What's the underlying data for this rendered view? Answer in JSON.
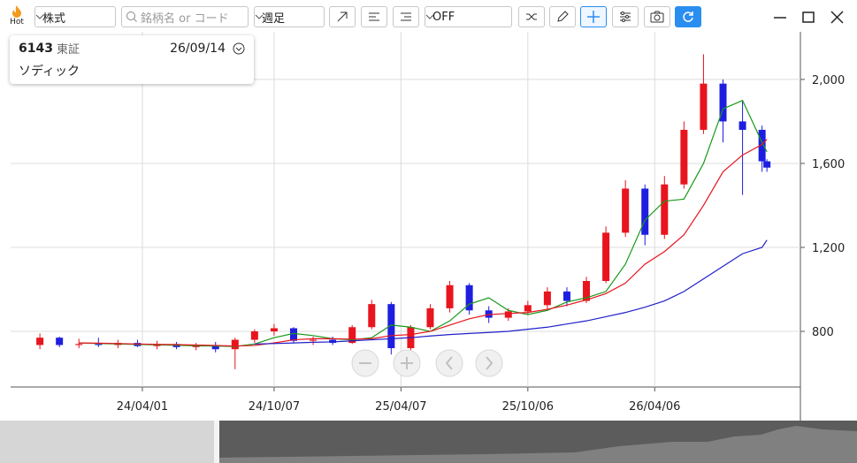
{
  "toolbar": {
    "hot": "Hot",
    "market": "株式",
    "search_placeholder": "銘柄名 or コード",
    "period": "週足",
    "mode": "OFF"
  },
  "info": {
    "code": "6143",
    "exchange": "東証",
    "date": "26/09/14",
    "name": "ソディック"
  },
  "chart_data": {
    "type": "candlestick",
    "up_color": "#e8141e",
    "down_color": "#1e1ee0",
    "grid": true,
    "x": [
      "23/11/06",
      "23/12/04",
      "24/01/01",
      "24/01/29",
      "24/02/26",
      "24/03/25",
      "24/04/22",
      "24/05/20",
      "24/06/17",
      "24/07/15",
      "24/08/12",
      "24/09/09",
      "24/10/07",
      "24/11/04",
      "24/12/02",
      "24/12/30",
      "25/01/27",
      "25/02/24",
      "25/03/24",
      "25/04/21",
      "25/05/19",
      "25/06/16",
      "25/07/14",
      "25/08/11",
      "25/09/08",
      "25/10/06",
      "25/11/03",
      "25/12/01",
      "25/12/29",
      "26/01/26",
      "26/02/23",
      "26/03/23",
      "26/04/20",
      "26/05/18",
      "26/06/15",
      "26/07/13",
      "26/08/10",
      "26/09/07",
      "26/09/14"
    ],
    "open": [
      735,
      770,
      735,
      740,
      735,
      745,
      730,
      740,
      725,
      735,
      715,
      760,
      800,
      815,
      755,
      760,
      745,
      820,
      930,
      720,
      820,
      910,
      1020,
      900,
      865,
      895,
      925,
      990,
      945,
      1040,
      1270,
      1480,
      1260,
      1500,
      1760,
      1980,
      1800,
      1760,
      1610
    ],
    "high": [
      790,
      775,
      765,
      770,
      760,
      760,
      755,
      750,
      745,
      750,
      770,
      810,
      835,
      820,
      775,
      775,
      830,
      950,
      940,
      830,
      930,
      1040,
      1030,
      920,
      910,
      945,
      1010,
      1010,
      1060,
      1300,
      1520,
      1500,
      1540,
      1800,
      2120,
      2000,
      1900,
      1780,
      1620
    ],
    "low": [
      715,
      725,
      720,
      725,
      720,
      725,
      715,
      715,
      710,
      700,
      620,
      745,
      780,
      745,
      735,
      735,
      740,
      810,
      690,
      710,
      810,
      890,
      880,
      840,
      850,
      880,
      905,
      920,
      935,
      1030,
      1250,
      1210,
      1240,
      1480,
      1740,
      1700,
      1450,
      1560,
      1560
    ],
    "close": [
      770,
      735,
      740,
      735,
      745,
      730,
      740,
      725,
      735,
      715,
      760,
      800,
      815,
      755,
      760,
      745,
      820,
      930,
      720,
      820,
      910,
      1020,
      900,
      865,
      895,
      925,
      990,
      945,
      1040,
      1270,
      1480,
      1260,
      1500,
      1760,
      1980,
      1800,
      1760,
      1610,
      1580
    ],
    "series": [
      {
        "color": "#1a9a1a",
        "values": [
          null,
          null,
          745,
          742,
          740,
          738,
          736,
          734,
          731,
          730,
          728,
          740,
          770,
          790,
          780,
          765,
          760,
          770,
          830,
          820,
          800,
          850,
          930,
          960,
          900,
          880,
          900,
          940,
          960,
          990,
          1120,
          1330,
          1420,
          1430,
          1600,
          1860,
          1900,
          1700,
          1655
        ]
      },
      {
        "color": "#e8141e",
        "values": [
          null,
          null,
          745,
          744,
          742,
          740,
          738,
          737,
          735,
          733,
          730,
          733,
          745,
          760,
          765,
          765,
          763,
          765,
          780,
          785,
          800,
          830,
          860,
          880,
          885,
          890,
          905,
          925,
          950,
          980,
          1030,
          1120,
          1180,
          1260,
          1400,
          1560,
          1640,
          1690,
          1715
        ]
      },
      {
        "color": "#2020c8",
        "values": [
          null,
          null,
          null,
          null,
          null,
          null,
          null,
          null,
          null,
          null,
          null,
          740,
          742,
          745,
          748,
          750,
          755,
          760,
          765,
          770,
          778,
          785,
          790,
          795,
          800,
          810,
          820,
          835,
          850,
          870,
          890,
          915,
          945,
          990,
          1050,
          1110,
          1170,
          1200,
          1235
        ]
      }
    ],
    "xlim": [
      "23/09/25",
      "26/11/01"
    ],
    "xticks": [
      "24/04/01",
      "24/10/07",
      "25/04/07",
      "25/10/06",
      "26/04/06"
    ],
    "ylim": [
      535,
      2210
    ],
    "yticks": [
      {
        "value": 800,
        "label": "800"
      },
      {
        "value": 1200,
        "label": "1,200"
      },
      {
        "value": 1600,
        "label": "1,600"
      },
      {
        "value": 2000,
        "label": "2,000"
      }
    ]
  }
}
